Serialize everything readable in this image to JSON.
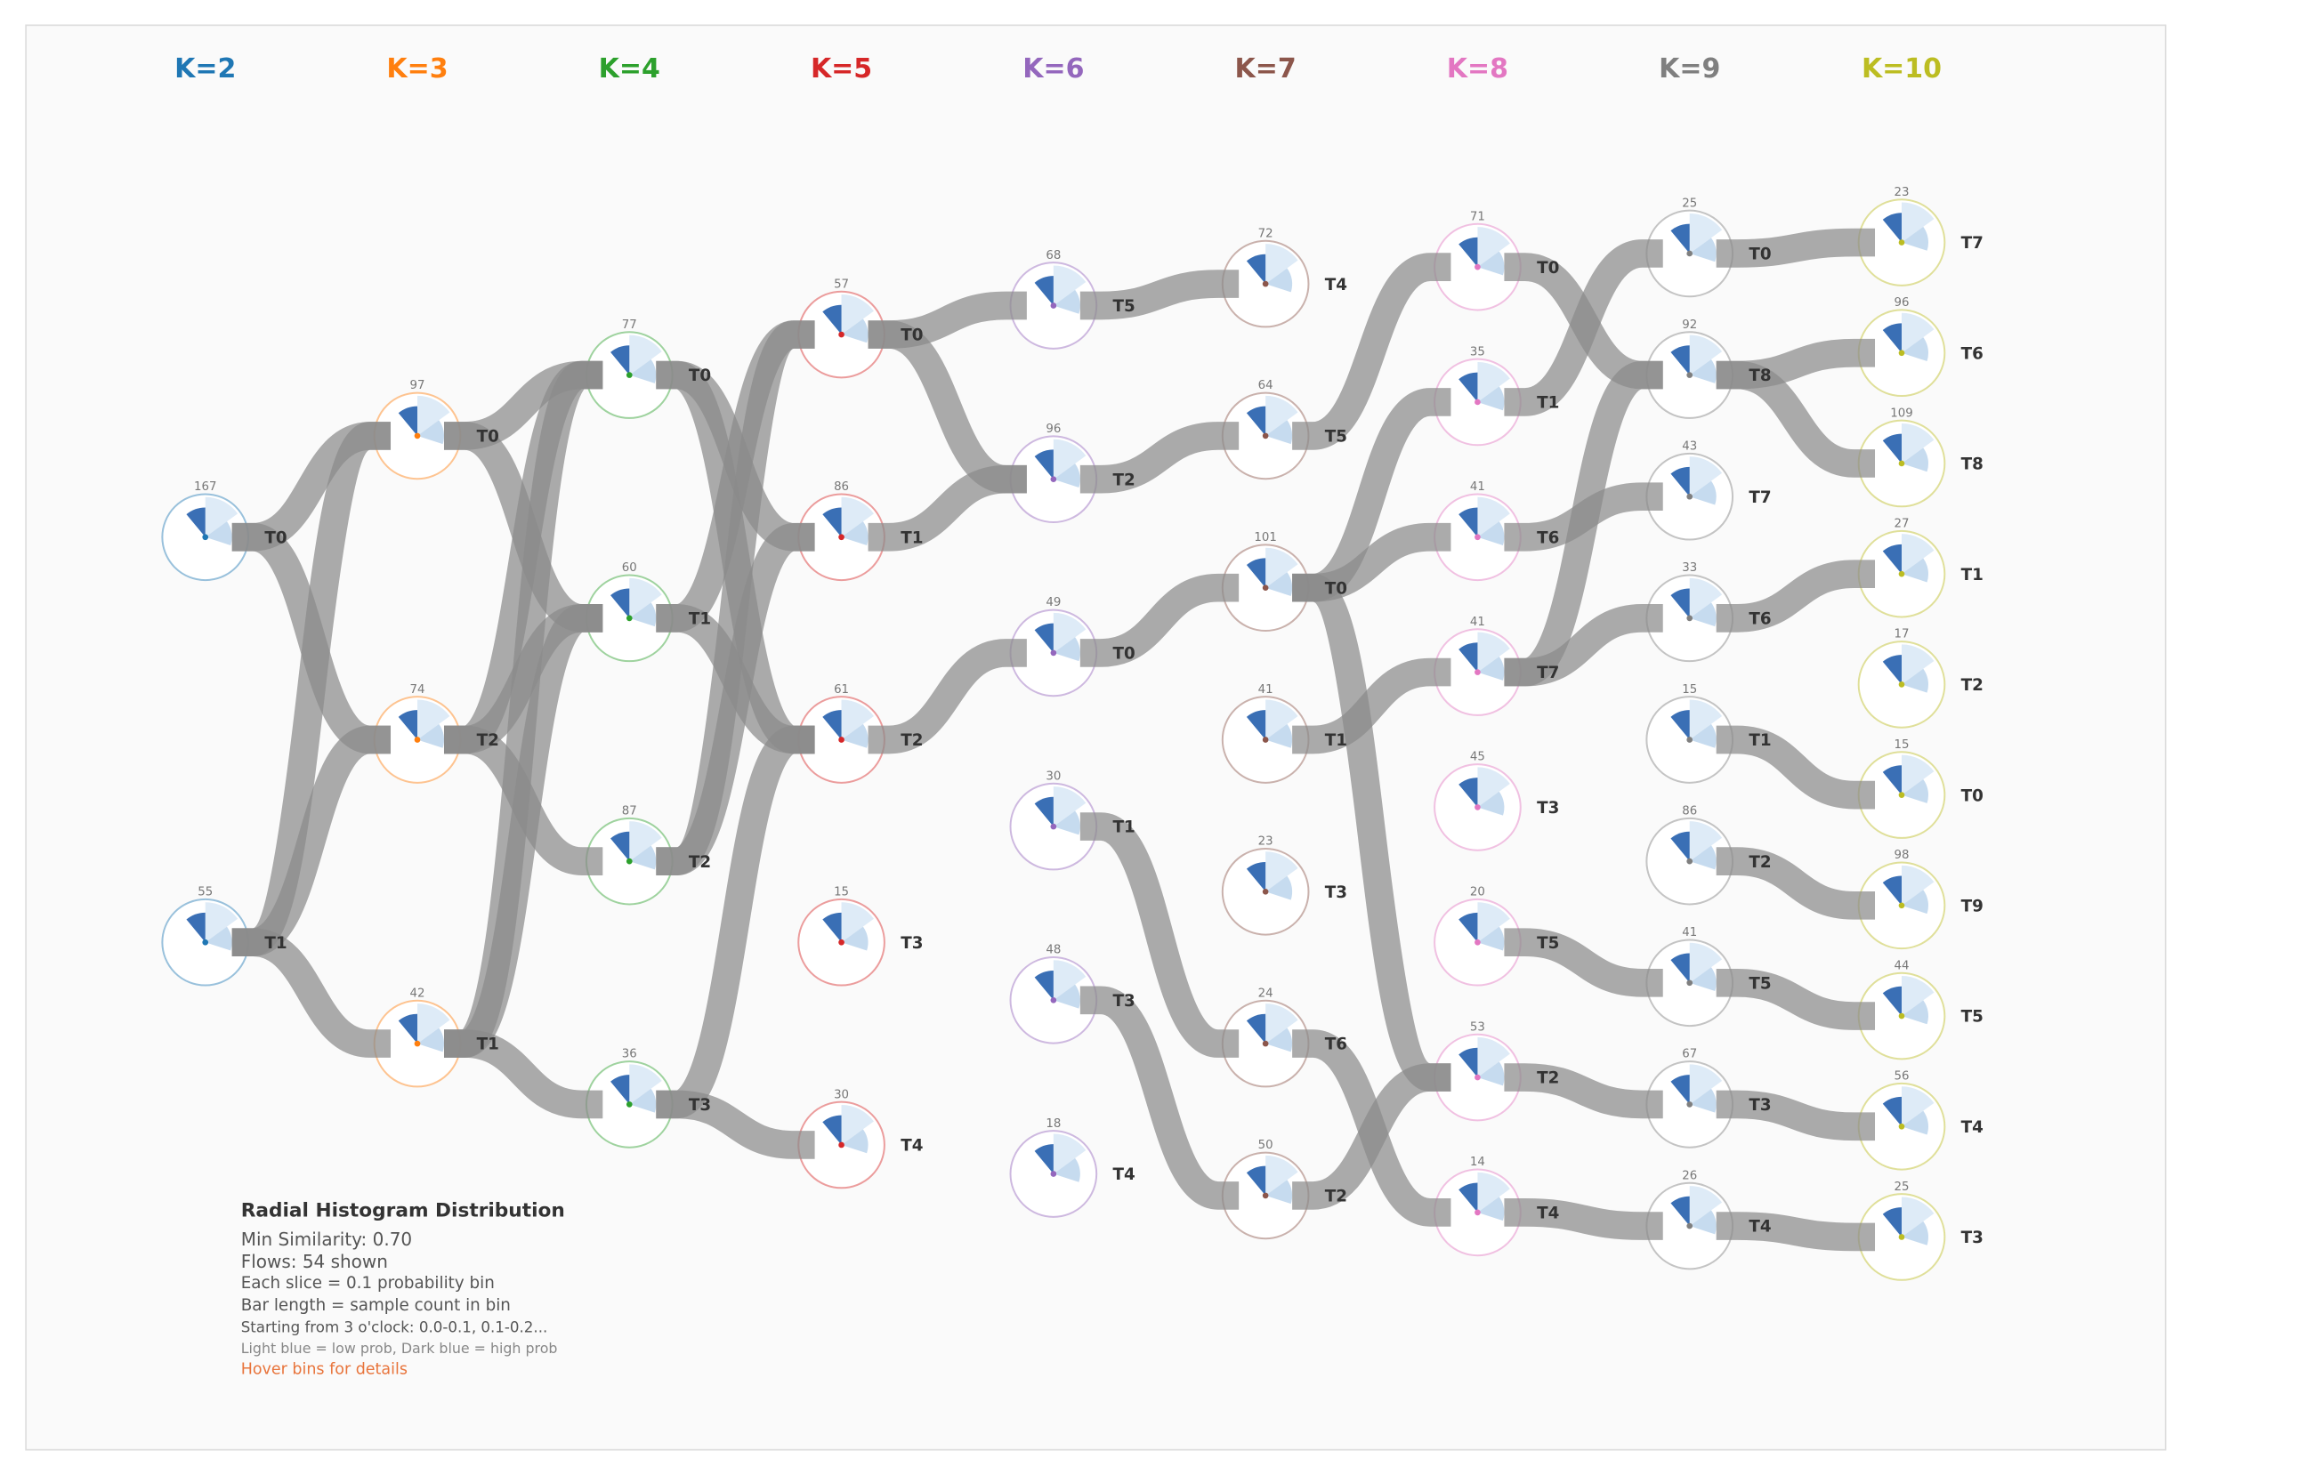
{
  "columns": [
    {
      "label": "K=2",
      "color": "#1f77b4",
      "nodes": [
        {
          "label": "T0",
          "count": 167,
          "links": [
            "T0",
            "T2"
          ]
        },
        {
          "label": "T1",
          "count": 55,
          "links": [
            "T0",
            "T2",
            "T1"
          ]
        }
      ]
    },
    {
      "label": "K=3",
      "color": "#ff7f0e",
      "nodes": [
        {
          "label": "T0",
          "count": 97,
          "links": [
            "T0",
            "T1"
          ]
        },
        {
          "label": "T2",
          "count": 74,
          "links": [
            "T0",
            "T1",
            "T2"
          ]
        },
        {
          "label": "T1",
          "count": 42,
          "links": [
            "T0",
            "T1",
            "T3"
          ]
        }
      ]
    },
    {
      "label": "K=4",
      "color": "#2ca02c",
      "nodes": [
        {
          "label": "T0",
          "count": 77,
          "links": [
            "T1",
            "T2"
          ]
        },
        {
          "label": "T1",
          "count": 60,
          "links": [
            "T0",
            "T2"
          ]
        },
        {
          "label": "T2",
          "count": 87,
          "links": [
            "T0",
            "T1"
          ]
        },
        {
          "label": "T3",
          "count": 36,
          "links": [
            "T2",
            "T4"
          ]
        }
      ]
    },
    {
      "label": "K=5",
      "color": "#d62728",
      "nodes": [
        {
          "label": "T0",
          "count": 57,
          "links": [
            "T5",
            "T2"
          ]
        },
        {
          "label": "T1",
          "count": 86,
          "links": [
            "T2"
          ]
        },
        {
          "label": "T2",
          "count": 61,
          "links": [
            "T0"
          ]
        },
        {
          "label": "T3",
          "count": 15,
          "links": []
        },
        {
          "label": "T4",
          "count": 30,
          "links": []
        }
      ]
    },
    {
      "label": "K=6",
      "color": "#9467bd",
      "nodes": [
        {
          "label": "T5",
          "count": 68,
          "links": [
            "T4"
          ]
        },
        {
          "label": "T2",
          "count": 96,
          "links": [
            "T5"
          ]
        },
        {
          "label": "T0",
          "count": 49,
          "links": [
            "T0"
          ]
        },
        {
          "label": "T1",
          "count": 30,
          "links": [
            "T6"
          ]
        },
        {
          "label": "T3",
          "count": 48,
          "links": [
            "T2"
          ]
        },
        {
          "label": "T4",
          "count": 18,
          "links": []
        }
      ]
    },
    {
      "label": "K=7",
      "color": "#8c564b",
      "nodes": [
        {
          "label": "T4",
          "count": 72,
          "links": []
        },
        {
          "label": "T5",
          "count": 64,
          "links": [
            "T0"
          ]
        },
        {
          "label": "T0",
          "count": 101,
          "links": [
            "T1",
            "T6",
            "T2"
          ]
        },
        {
          "label": "T1",
          "count": 41,
          "links": [
            "T7"
          ]
        },
        {
          "label": "T3",
          "count": 23,
          "links": []
        },
        {
          "label": "T6",
          "count": 24,
          "links": [
            "T4"
          ]
        },
        {
          "label": "T2",
          "count": 50,
          "links": [
            "T2"
          ]
        }
      ]
    },
    {
      "label": "K=8",
      "color": "#e377c2",
      "nodes": [
        {
          "label": "T0",
          "count": 71,
          "links": [
            "T8"
          ]
        },
        {
          "label": "T1",
          "count": 35,
          "links": [
            "T0"
          ]
        },
        {
          "label": "T6",
          "count": 41,
          "links": [
            "T7"
          ]
        },
        {
          "label": "T7",
          "count": 41,
          "links": [
            "T6",
            "T8"
          ]
        },
        {
          "label": "T3",
          "count": 45,
          "links": []
        },
        {
          "label": "T5",
          "count": 20,
          "links": [
            "T5"
          ]
        },
        {
          "label": "T2",
          "count": 53,
          "links": [
            "T3"
          ]
        },
        {
          "label": "T4",
          "count": 14,
          "links": [
            "T4"
          ]
        }
      ]
    },
    {
      "label": "K=9",
      "color": "#7f7f7f",
      "nodes": [
        {
          "label": "T0",
          "count": 25,
          "links": [
            "T7"
          ]
        },
        {
          "label": "T8",
          "count": 92,
          "links": [
            "T6",
            "T8"
          ]
        },
        {
          "label": "T7",
          "count": 43,
          "links": []
        },
        {
          "label": "T6",
          "count": 33,
          "links": [
            "T1"
          ]
        },
        {
          "label": "T1",
          "count": 15,
          "links": [
            "T0"
          ]
        },
        {
          "label": "T2",
          "count": 86,
          "links": [
            "T9"
          ]
        },
        {
          "label": "T5",
          "count": 41,
          "links": [
            "T5"
          ]
        },
        {
          "label": "T3",
          "count": 67,
          "links": [
            "T4"
          ]
        },
        {
          "label": "T4",
          "count": 26,
          "links": [
            "T3"
          ]
        }
      ]
    },
    {
      "label": "K=10",
      "color": "#bcbd22",
      "nodes": [
        {
          "label": "T7",
          "count": 23,
          "links": []
        },
        {
          "label": "T6",
          "count": 96,
          "links": []
        },
        {
          "label": "T8",
          "count": 109,
          "links": []
        },
        {
          "label": "T1",
          "count": 27,
          "links": []
        },
        {
          "label": "T2",
          "count": 17,
          "links": []
        },
        {
          "label": "T0",
          "count": 15,
          "links": []
        },
        {
          "label": "T9",
          "count": 98,
          "links": []
        },
        {
          "label": "T5",
          "count": 44,
          "links": []
        },
        {
          "label": "T4",
          "count": 56,
          "links": []
        },
        {
          "label": "T3",
          "count": 25,
          "links": []
        }
      ]
    }
  ],
  "legend": {
    "title": "Radial Histogram Distribution",
    "lines": [
      "Min Similarity: 0.70",
      "Flows: 54 shown",
      "Each slice = 0.1 probability bin",
      "Bar length = sample count in bin",
      "Starting from 3 o'clock: 0.0-0.1, 0.1-0.2...",
      "Light blue = low prob, Dark blue = high prob"
    ],
    "hint": "Hover bins for details"
  }
}
